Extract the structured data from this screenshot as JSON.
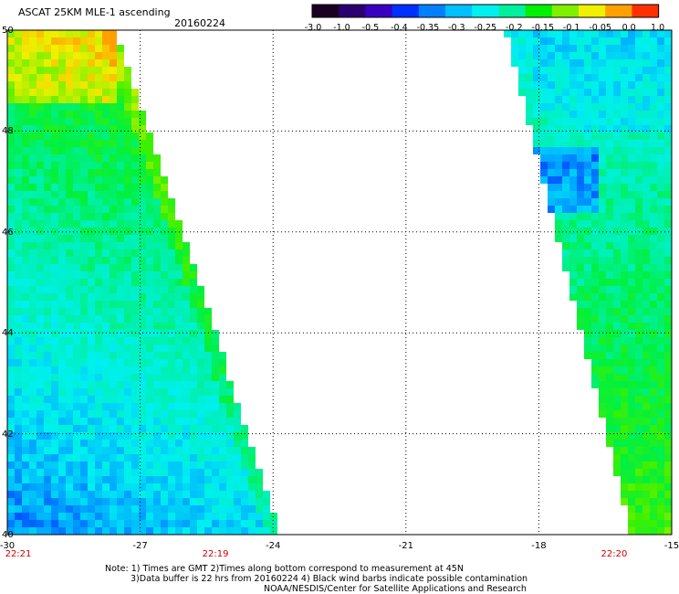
{
  "header": {
    "title": "ASCAT 25KM MLE-1 ascending",
    "date": "20160224"
  },
  "colorbar": {
    "labels": [
      "-3.0",
      "-1.0",
      "-0.5",
      "-0.4",
      "-0.35",
      "-0.3",
      "-0.25",
      "-0.2",
      "-0.15",
      "-0.1",
      "-0.05",
      "0.0",
      "1.0"
    ],
    "colors": [
      "#1a0020",
      "#2a0070",
      "#3a00c0",
      "#0030ff",
      "#0080ff",
      "#00c0ff",
      "#00f0f0",
      "#00f0a0",
      "#00f000",
      "#80f000",
      "#f0f000",
      "#ffa000",
      "#ff3000"
    ]
  },
  "map": {
    "lon_range": [
      -30,
      -15
    ],
    "lat_range": [
      40,
      50
    ],
    "lon_ticks": [
      "-30",
      "-27",
      "-24",
      "-21",
      "-18",
      "-15"
    ],
    "lat_ticks": [
      "50",
      "48",
      "46",
      "44",
      "42",
      "40"
    ],
    "times": [
      "22:21",
      "22:19",
      "22:20"
    ],
    "time_color": "#cc0000"
  },
  "notes": {
    "line1": "Note: 1) Times are GMT 2)Times along bottom correspond to measurement at 45N",
    "line2": "3)Data buffer is 22 hrs from 20160224 4) Black wind barbs indicate possible contamination",
    "line3": "NOAA/NESDIS/Center for Satellite Applications and Research"
  }
}
